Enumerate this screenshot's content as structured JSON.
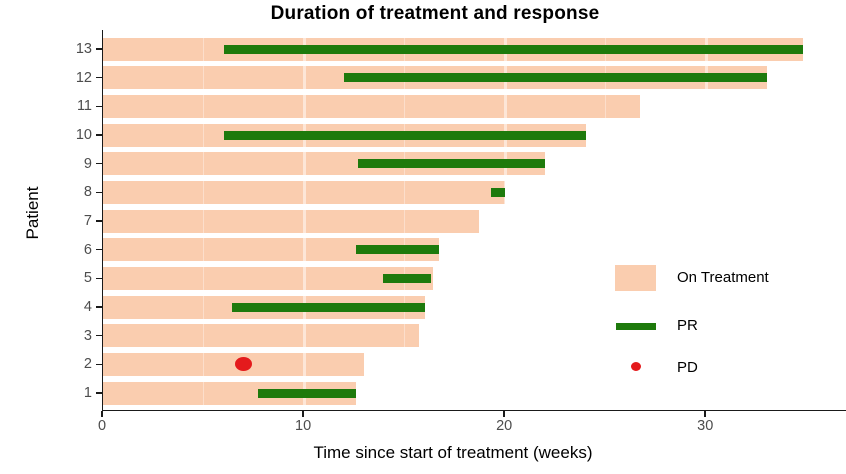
{
  "chart_data": {
    "type": "bar",
    "subtype": "swimmer-plot",
    "title": "Duration of treatment and response",
    "xlabel": "Time since start of treatment (weeks)",
    "ylabel": "Patient",
    "xlim": [
      0,
      37
    ],
    "xticks": [
      0,
      10,
      20,
      30
    ],
    "grid": {
      "major": [
        10,
        20,
        30
      ],
      "minor": [
        5,
        15,
        25,
        35
      ],
      "style": "white-overlay"
    },
    "legend_position": "right-inside",
    "patients": [
      {
        "id": 13,
        "on_treatment": [
          0,
          34.8
        ],
        "pr": [
          6.0,
          34.8
        ],
        "pd": null
      },
      {
        "id": 12,
        "on_treatment": [
          0,
          33.0
        ],
        "pr": [
          12.0,
          33.0
        ],
        "pd": null
      },
      {
        "id": 11,
        "on_treatment": [
          0,
          26.7
        ],
        "pr": null,
        "pd": null
      },
      {
        "id": 10,
        "on_treatment": [
          0,
          24.0
        ],
        "pr": [
          6.0,
          24.0
        ],
        "pd": null
      },
      {
        "id": 9,
        "on_treatment": [
          0,
          22.0
        ],
        "pr": [
          12.7,
          22.0
        ],
        "pd": null
      },
      {
        "id": 8,
        "on_treatment": [
          0,
          20.0
        ],
        "pr": [
          19.3,
          20.0
        ],
        "pd": null
      },
      {
        "id": 7,
        "on_treatment": [
          0,
          18.7
        ],
        "pr": null,
        "pd": null
      },
      {
        "id": 6,
        "on_treatment": [
          0,
          16.7
        ],
        "pr": [
          12.6,
          16.7
        ],
        "pd": null
      },
      {
        "id": 5,
        "on_treatment": [
          0,
          16.4
        ],
        "pr": [
          13.9,
          16.3
        ],
        "pd": null
      },
      {
        "id": 4,
        "on_treatment": [
          0,
          16.0
        ],
        "pr": [
          6.4,
          16.0
        ],
        "pd": null
      },
      {
        "id": 3,
        "on_treatment": [
          0,
          15.7
        ],
        "pr": null,
        "pd": null
      },
      {
        "id": 2,
        "on_treatment": [
          0,
          13.0
        ],
        "pr": null,
        "pd": 7.0
      },
      {
        "id": 1,
        "on_treatment": [
          0,
          12.6
        ],
        "pr": [
          7.7,
          12.6
        ],
        "pd": null
      }
    ],
    "legend": [
      {
        "label": "On Treatment",
        "swatch": "bar",
        "color": "#FACDAF"
      },
      {
        "label": "PR",
        "swatch": "line",
        "color": "#1E7A0C"
      },
      {
        "label": "PD",
        "swatch": "dot",
        "color": "#E41A1C"
      }
    ],
    "colors": {
      "on_treatment": "#FACDAF",
      "pr": "#1E7A0C",
      "pd": "#E41A1C",
      "axis": "#1a1a1a",
      "tick_label": "#4D4D4D",
      "title": "#000000"
    }
  }
}
